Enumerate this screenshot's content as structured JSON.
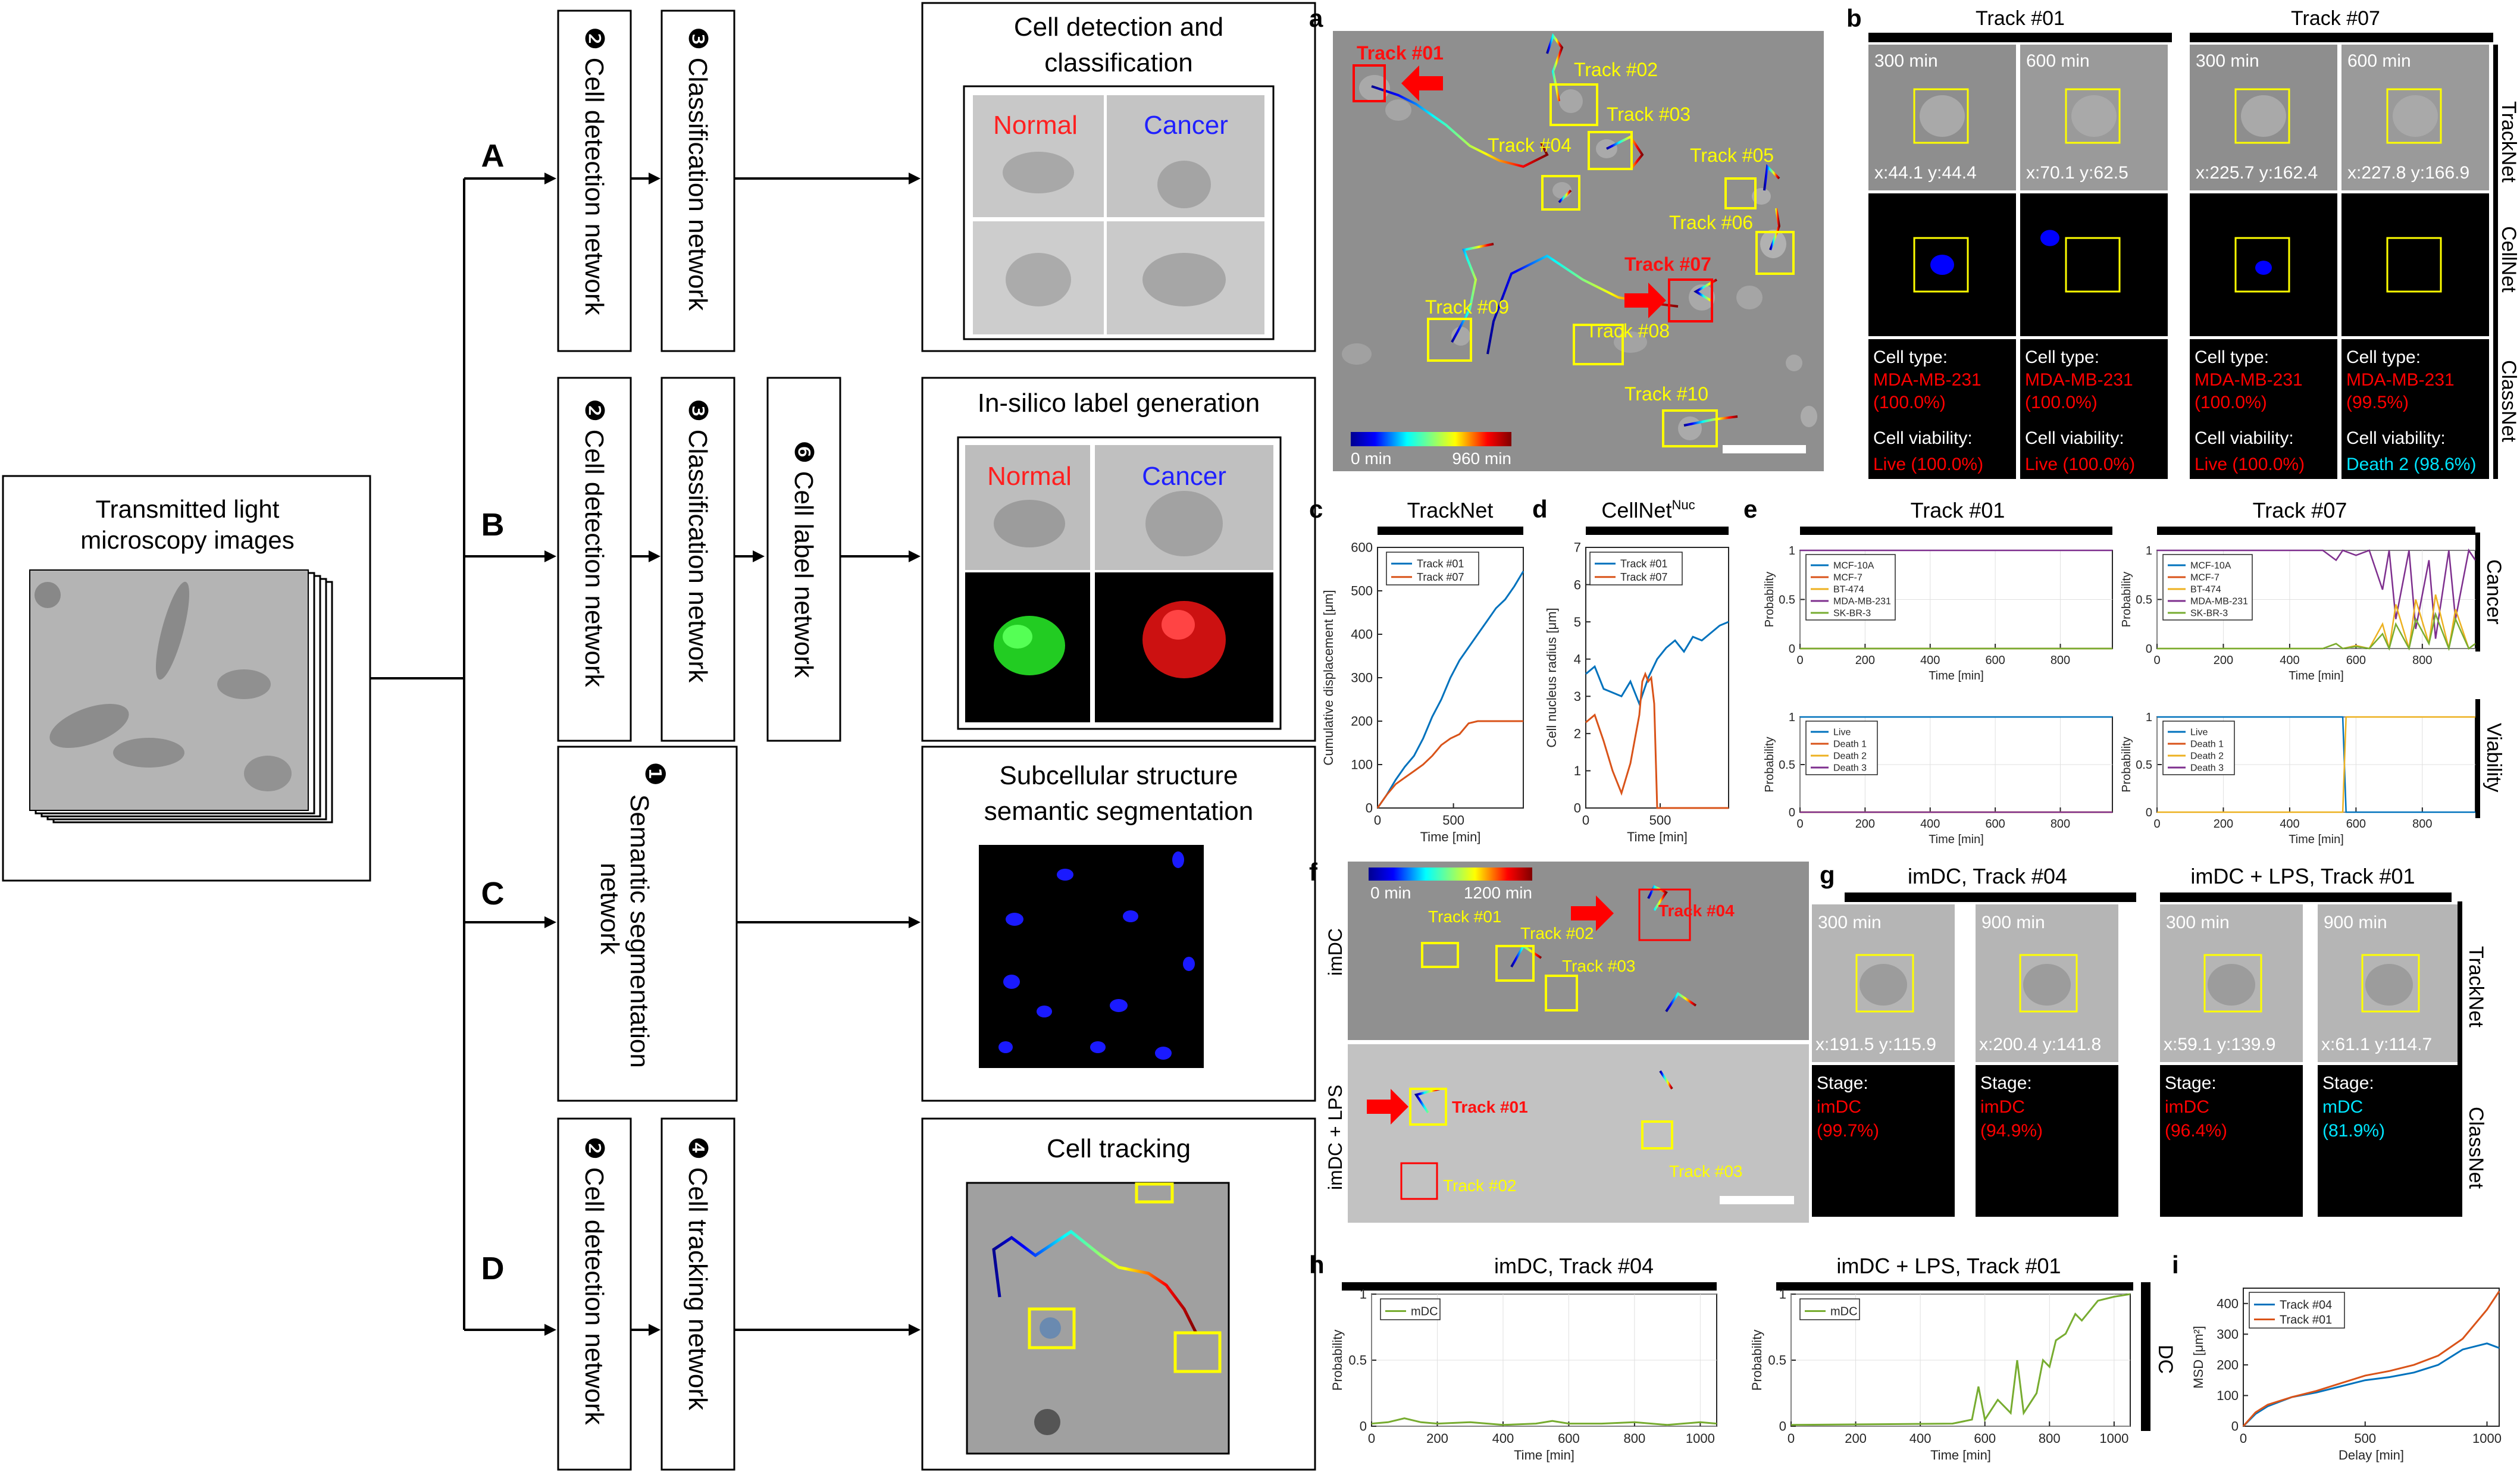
{
  "input_box": {
    "title_line1": "Transmitted light",
    "title_line2": "microscopy images"
  },
  "rows": {
    "A": "A",
    "B": "B",
    "C": "C",
    "D": "D"
  },
  "networks": {
    "cell_detection": "❷ Cell detection network",
    "classification": "❸ Classification network",
    "cell_label": "❻ Cell label network",
    "semantic_line1": "❶",
    "semantic_line2": "Semantic segmentation",
    "semantic_line3": "network",
    "cell_tracking": "❹ Cell tracking network"
  },
  "outputs": {
    "A": {
      "title_line1": "Cell detection and",
      "title_line2": "classification",
      "normal": "Normal",
      "cancer": "Cancer"
    },
    "B": {
      "title": "In-silico label generation",
      "normal": "Normal",
      "cancer": "Cancer"
    },
    "C": {
      "title_line1": "Subcellular structure",
      "title_line2": "semantic segmentation"
    },
    "D": {
      "title": "Cell tracking"
    }
  },
  "panel_letters": {
    "a": "a",
    "b": "b",
    "c": "c",
    "d": "d",
    "e": "e",
    "f": "f",
    "g": "g",
    "h": "h",
    "i": "i"
  },
  "panel_a": {
    "tracks": [
      "Track #01",
      "Track #02",
      "Track #03",
      "Track #04",
      "Track #05",
      "Track #06",
      "Track #07",
      "Track #08",
      "Track #09",
      "Track #10"
    ],
    "colorbar_min": "0 min",
    "colorbar_max": "960 min"
  },
  "panel_b": {
    "headers": [
      "Track #01",
      "Track #07"
    ],
    "times": [
      "300 min",
      "600 min",
      "300 min",
      "600 min"
    ],
    "coords": [
      "x:44.1 y:44.4",
      "x:70.1 y:62.5",
      "x:225.7 y:162.4",
      "x:227.8 y:166.9"
    ],
    "cell_type_label": "Cell type:",
    "cell_types": [
      "MDA-MB-231",
      "MDA-MB-231",
      "MDA-MB-231",
      "MDA-MB-231"
    ],
    "cell_type_probs": [
      "(100.0%)",
      "(100.0%)",
      "(100.0%)",
      "(99.5%)"
    ],
    "viability_label": "Cell viability:",
    "viabilities": [
      "Live (100.0%)",
      "Live (100.0%)",
      "Live (100.0%)",
      "Death 2 (98.6%)"
    ],
    "side_labels": [
      "TrackNet",
      "CellNet",
      "ClassNet"
    ],
    "colors": {
      "red": "#ff0000",
      "cyan": "#00e5ff"
    }
  },
  "panel_c": {
    "title": "TrackNet",
    "ylabel": "Cumulative displacement [μm]",
    "xlabel": "Time [min]",
    "yticks": [
      "0",
      "100",
      "200",
      "300",
      "400",
      "500",
      "600"
    ],
    "xticks": [
      "0",
      "500"
    ],
    "legend": [
      "Track #01",
      "Track #07"
    ]
  },
  "panel_d": {
    "title": "CellNet",
    "title_sup": "Nuc",
    "ylabel": "Cell nucleus radius [μm]",
    "xlabel": "Time [min]",
    "yticks": [
      "0",
      "1",
      "2",
      "3",
      "4",
      "5",
      "6",
      "7"
    ],
    "xticks": [
      "0",
      "500"
    ],
    "legend": [
      "Track #01",
      "Track #07"
    ]
  },
  "panel_e": {
    "headers": [
      "Track #01",
      "Track #07"
    ],
    "ylabel": "Probability",
    "xlabel": "Time [min]",
    "yticks": [
      "0",
      "0.5",
      "1"
    ],
    "xticks": [
      "0",
      "200",
      "400",
      "600",
      "800"
    ],
    "cancer_legend": [
      "MCF-10A",
      "MCF-7",
      "BT-474",
      "MDA-MB-231",
      "SK-BR-3"
    ],
    "viability_legend": [
      "Live",
      "Death 1",
      "Death 2",
      "Death 3"
    ],
    "side_labels": [
      "Cancer",
      "Viability"
    ]
  },
  "panel_f": {
    "colorbar_min": "0 min",
    "colorbar_max": "1200 min",
    "row_labels": [
      "imDC",
      "imDC + LPS"
    ],
    "top_tracks": [
      "Track #01",
      "Track #02",
      "Track #03",
      "Track #04"
    ],
    "bottom_tracks": [
      "Track #01",
      "Track #02",
      "Track #03"
    ]
  },
  "panel_g": {
    "headers": [
      "imDC, Track #04",
      "imDC + LPS, Track #01"
    ],
    "times": [
      "300 min",
      "900 min",
      "300 min",
      "900 min"
    ],
    "coords": [
      "x:191.5 y:115.9",
      "x:200.4 y:141.8",
      "x:59.1 y:139.9",
      "x:61.1 y:114.7"
    ],
    "stage_label": "Stage:",
    "stages": [
      "imDC",
      "imDC",
      "imDC",
      "mDC"
    ],
    "stage_probs": [
      "(99.7%)",
      "(94.9%)",
      "(96.4%)",
      "(81.9%)"
    ],
    "side_labels": [
      "TrackNet",
      "ClassNet"
    ]
  },
  "panel_h": {
    "headers": [
      "imDC, Track #04",
      "imDC + LPS, Track #01"
    ],
    "ylabel": "Probability",
    "xlabel": "Time [min]",
    "yticks": [
      "0",
      "0.5",
      "1"
    ],
    "xticks": [
      "0",
      "200",
      "400",
      "600",
      "800",
      "1000"
    ],
    "legend": [
      "mDC"
    ],
    "side_label": "DC"
  },
  "panel_i": {
    "ylabel": "MSD [μm²]",
    "xlabel": "Delay [min]",
    "yticks": [
      "0",
      "100",
      "200",
      "300",
      "400"
    ],
    "xticks": [
      "0",
      "500",
      "1000"
    ],
    "legend": [
      "Track #04",
      "Track #01"
    ]
  },
  "colors": {
    "track01_blue": "#0072bd",
    "track07_orange": "#d95319",
    "yellow": "#ffff00",
    "red": "#ff0000",
    "green": "#00ff00",
    "mdc_green": "#77ac30",
    "purple": "#7e2f8e"
  },
  "chart_data": [
    {
      "id": "c",
      "type": "line",
      "title": "TrackNet",
      "xlabel": "Time [min]",
      "ylabel": "Cumulative displacement [μm]",
      "xlim": [
        0,
        960
      ],
      "ylim": [
        0,
        600
      ],
      "series": [
        {
          "name": "Track #01",
          "x": [
            0,
            60,
            120,
            180,
            240,
            300,
            360,
            420,
            480,
            540,
            600,
            660,
            720,
            780,
            840,
            900,
            960
          ],
          "values": [
            0,
            30,
            65,
            95,
            120,
            160,
            210,
            250,
            300,
            340,
            370,
            400,
            430,
            460,
            480,
            510,
            545
          ]
        },
        {
          "name": "Track #07",
          "x": [
            0,
            60,
            120,
            180,
            240,
            300,
            360,
            420,
            480,
            540,
            600,
            660,
            720,
            780,
            840,
            900,
            960
          ],
          "values": [
            0,
            30,
            55,
            70,
            85,
            100,
            120,
            145,
            160,
            170,
            195,
            200,
            200,
            200,
            200,
            200,
            200
          ]
        }
      ]
    },
    {
      "id": "d",
      "type": "line",
      "title": "CellNet",
      "xlabel": "Time [min]",
      "ylabel": "Cell nucleus radius [μm]",
      "xlim": [
        0,
        960
      ],
      "ylim": [
        0,
        7
      ],
      "series": [
        {
          "name": "Track #01",
          "x": [
            0,
            60,
            120,
            180,
            240,
            300,
            360,
            420,
            480,
            540,
            600,
            660,
            720,
            780,
            840,
            900,
            960
          ],
          "values": [
            3.6,
            3.8,
            3.2,
            3.1,
            3.0,
            3.4,
            2.8,
            3.5,
            4.0,
            4.3,
            4.5,
            4.2,
            4.6,
            4.5,
            4.7,
            4.9,
            5.0
          ]
        },
        {
          "name": "Track #07",
          "x": [
            0,
            60,
            120,
            180,
            240,
            300,
            360,
            380,
            400,
            420,
            440,
            460,
            480,
            500,
            960
          ],
          "values": [
            2.3,
            2.5,
            1.8,
            1.0,
            0.4,
            1.2,
            2.5,
            3.4,
            3.6,
            3.4,
            3.5,
            2.8,
            0.0,
            0.0,
            0.0
          ]
        }
      ]
    },
    {
      "id": "e-cancer-01",
      "type": "line",
      "title": "Track #01",
      "xlim": [
        0,
        960
      ],
      "ylim": [
        0,
        1
      ],
      "series": [
        {
          "name": "MCF-10A",
          "x": [
            0,
            960
          ],
          "values": [
            0,
            0
          ]
        },
        {
          "name": "MCF-7",
          "x": [
            0,
            960
          ],
          "values": [
            0,
            0
          ]
        },
        {
          "name": "BT-474",
          "x": [
            0,
            960
          ],
          "values": [
            0,
            0
          ]
        },
        {
          "name": "MDA-MB-231",
          "x": [
            0,
            960
          ],
          "values": [
            1,
            1
          ]
        },
        {
          "name": "SK-BR-3",
          "x": [
            0,
            960
          ],
          "values": [
            0,
            0
          ]
        }
      ]
    },
    {
      "id": "e-viability-01",
      "type": "line",
      "xlim": [
        0,
        960
      ],
      "ylim": [
        0,
        1
      ],
      "series": [
        {
          "name": "Live",
          "x": [
            0,
            960
          ],
          "values": [
            1,
            1
          ]
        },
        {
          "name": "Death 1",
          "x": [
            0,
            960
          ],
          "values": [
            0,
            0
          ]
        },
        {
          "name": "Death 2",
          "x": [
            0,
            960
          ],
          "values": [
            0,
            0
          ]
        },
        {
          "name": "Death 3",
          "x": [
            0,
            960
          ],
          "values": [
            0,
            0
          ]
        }
      ]
    },
    {
      "id": "e-cancer-07",
      "type": "line",
      "title": "Track #07",
      "xlim": [
        0,
        960
      ],
      "ylim": [
        0,
        1
      ],
      "series": [
        {
          "name": "MDA-MB-231",
          "x": [
            0,
            500,
            540,
            560,
            600,
            640,
            680,
            700,
            720,
            760,
            780,
            820,
            840,
            880,
            900,
            940,
            960
          ],
          "values": [
            1,
            1,
            0.9,
            1,
            0.95,
            1,
            0.6,
            1,
            0.3,
            1,
            0.2,
            0.9,
            0.1,
            1,
            0.3,
            1,
            0.9
          ]
        },
        {
          "name": "BT-474",
          "x": [
            0,
            500,
            540,
            560,
            600,
            640,
            680,
            700,
            720,
            760,
            780,
            820,
            840,
            880,
            900,
            940,
            960
          ],
          "values": [
            0,
            0,
            0.05,
            0,
            0.03,
            0,
            0.25,
            0,
            0.45,
            0,
            0.5,
            0.05,
            0.55,
            0,
            0.4,
            0,
            0.05
          ]
        },
        {
          "name": "SK-BR-3",
          "x": [
            0,
            500,
            540,
            560,
            600,
            640,
            680,
            700,
            720,
            760,
            780,
            820,
            840,
            880,
            900,
            940,
            960
          ],
          "values": [
            0,
            0,
            0.05,
            0,
            0.02,
            0,
            0.15,
            0,
            0.25,
            0,
            0.3,
            0.05,
            0.35,
            0,
            0.3,
            0,
            0.05
          ]
        }
      ]
    },
    {
      "id": "e-viability-07",
      "type": "line",
      "xlim": [
        0,
        960
      ],
      "ylim": [
        0,
        1
      ],
      "series": [
        {
          "name": "Live",
          "x": [
            0,
            560,
            570,
            960
          ],
          "values": [
            1,
            1,
            0,
            0
          ]
        },
        {
          "name": "Death 2",
          "x": [
            0,
            560,
            570,
            960
          ],
          "values": [
            0,
            0,
            1,
            1
          ]
        }
      ]
    },
    {
      "id": "h-1",
      "type": "line",
      "title": "imDC, Track #04",
      "xlim": [
        0,
        1050
      ],
      "ylim": [
        0,
        1
      ],
      "series": [
        {
          "name": "mDC",
          "x": [
            0,
            50,
            100,
            150,
            200,
            300,
            400,
            500,
            550,
            600,
            700,
            800,
            900,
            1000,
            1050
          ],
          "values": [
            0.02,
            0.03,
            0.06,
            0.03,
            0.02,
            0.03,
            0.01,
            0.02,
            0.04,
            0.02,
            0.02,
            0.03,
            0.01,
            0.03,
            0.02
          ]
        }
      ]
    },
    {
      "id": "h-2",
      "type": "line",
      "title": "imDC + LPS, Track #01",
      "xlim": [
        0,
        1050
      ],
      "ylim": [
        0,
        1
      ],
      "series": [
        {
          "name": "mDC",
          "x": [
            0,
            500,
            560,
            580,
            600,
            640,
            680,
            700,
            720,
            760,
            780,
            800,
            820,
            850,
            880,
            900,
            950,
            1000,
            1050
          ],
          "values": [
            0.01,
            0.02,
            0.05,
            0.3,
            0.05,
            0.2,
            0.1,
            0.5,
            0.1,
            0.25,
            0.5,
            0.45,
            0.65,
            0.7,
            0.85,
            0.8,
            0.95,
            0.98,
            1.0
          ]
        }
      ]
    },
    {
      "id": "i",
      "type": "line",
      "xlabel": "Delay [min]",
      "ylabel": "MSD [μm²]",
      "xlim": [
        0,
        1050
      ],
      "ylim": [
        0,
        450
      ],
      "series": [
        {
          "name": "Track #04",
          "x": [
            0,
            50,
            100,
            200,
            300,
            400,
            500,
            600,
            700,
            800,
            900,
            1000,
            1050
          ],
          "values": [
            0,
            40,
            65,
            95,
            110,
            130,
            150,
            160,
            175,
            200,
            250,
            270,
            255
          ]
        },
        {
          "name": "Track #01",
          "x": [
            0,
            50,
            100,
            200,
            300,
            400,
            500,
            600,
            700,
            800,
            900,
            1000,
            1050
          ],
          "values": [
            0,
            45,
            70,
            95,
            115,
            140,
            165,
            180,
            200,
            230,
            285,
            380,
            440
          ]
        }
      ]
    }
  ]
}
